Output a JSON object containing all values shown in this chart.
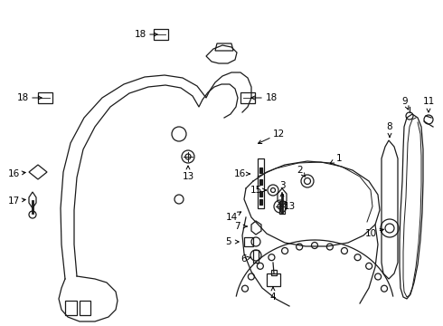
{
  "background_color": "#ffffff",
  "line_color": "#1a1a1a",
  "figsize": [
    4.9,
    3.6
  ],
  "dpi": 100
}
